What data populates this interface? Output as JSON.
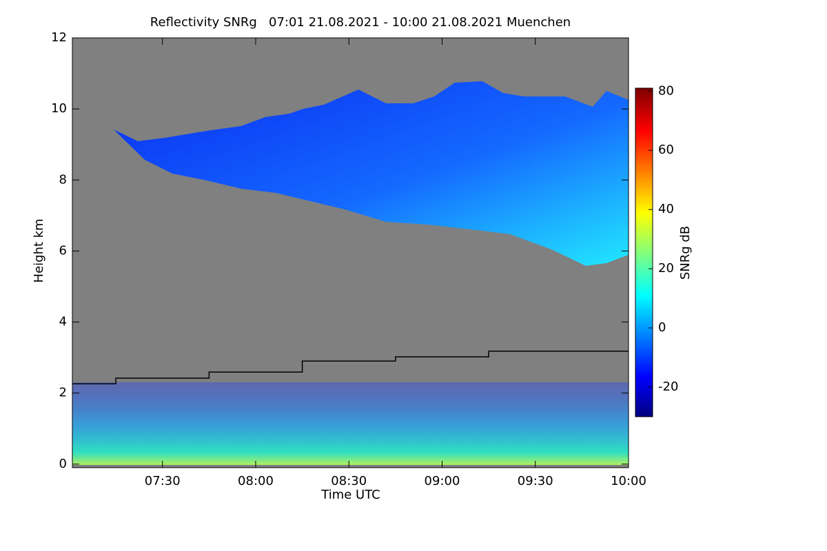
{
  "chart_data": {
    "type": "heatmap",
    "title": "Reflectivity SNRg   07:01 21.08.2021 - 10:00 21.08.2021 Muenchen",
    "x_label": "Time UTC",
    "y_label": "Height km",
    "colorbar_label": "SNRg dB",
    "xlim": [
      7.0167,
      10.0
    ],
    "xticks": [
      {
        "value": 7.5,
        "label": "07:30"
      },
      {
        "value": 8.0,
        "label": "08:00"
      },
      {
        "value": 8.5,
        "label": "08:30"
      },
      {
        "value": 9.0,
        "label": "09:00"
      },
      {
        "value": 9.5,
        "label": "09:30"
      },
      {
        "value": 10.0,
        "label": "10:00"
      }
    ],
    "ylim": [
      -0.1,
      12
    ],
    "yticks": [
      0,
      2,
      4,
      6,
      8,
      10,
      12
    ],
    "clim": [
      -30,
      81
    ],
    "cticks": [
      -20,
      0,
      20,
      40,
      60,
      80
    ],
    "background": "#808080",
    "series": [
      {
        "color": "#000000",
        "step": true,
        "x": [
          7.0167,
          7.25,
          7.75,
          8.25,
          8.75,
          9.25,
          10.0
        ],
        "values": [
          2.26,
          2.42,
          2.59,
          2.9,
          3.02,
          3.18,
          3.18
        ]
      }
    ]
  }
}
